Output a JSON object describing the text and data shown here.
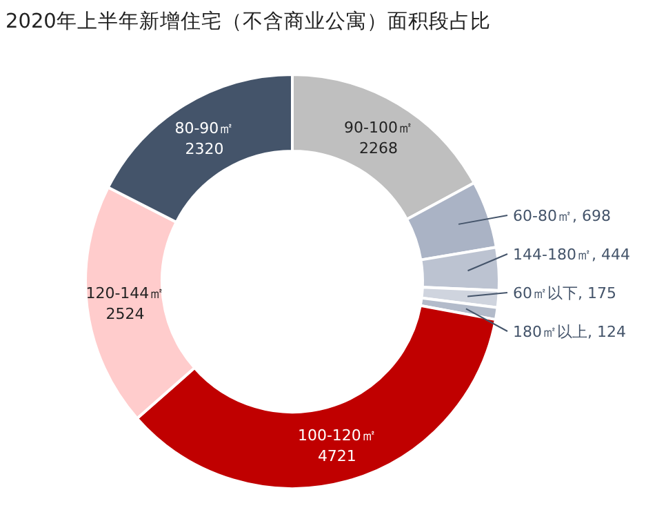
{
  "chart_data": {
    "type": "donut",
    "title": "2020年上半年新增住宅（不含商业公寓）面积段占比",
    "categories": [
      "90-100㎡",
      "60-80㎡",
      "144-180㎡",
      "60㎡以下",
      "180㎡以上",
      "100-120㎡",
      "120-144㎡",
      "80-90㎡"
    ],
    "values": [
      2268,
      698,
      444,
      175,
      124,
      4721,
      2524,
      2320
    ],
    "colors": [
      "#bfbfbf",
      "#aab3c5",
      "#bcc3d1",
      "#cfd4de",
      "#b3bbca",
      "#c00000",
      "#ffcccc",
      "#44546a"
    ],
    "value_labels": [
      "2268",
      ", 698",
      ", 444",
      ", 175",
      ", 124",
      "4721",
      "2524",
      "2320"
    ],
    "legend": false
  }
}
